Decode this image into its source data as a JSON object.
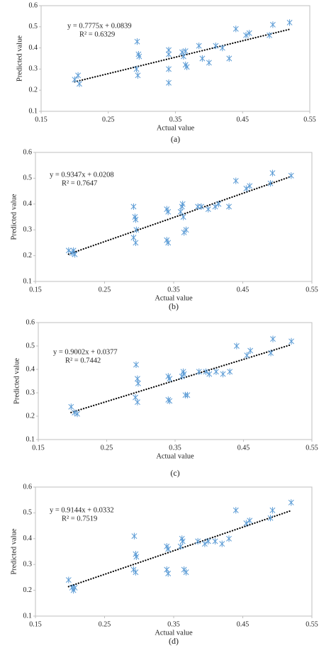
{
  "chart_data": [
    {
      "type": "scatter",
      "caption": "(a)",
      "xlabel": "Actual value",
      "ylabel": "Predicted value",
      "color": "#5b9bd5",
      "equation": "y = 0.7775x + 0.0839",
      "r2": "R² = 0.6329",
      "slope": 0.7775,
      "intercept": 0.0839,
      "xlim": [
        0.15,
        0.55
      ],
      "xticks": [
        0.15,
        0.25,
        0.35,
        0.45,
        0.55
      ],
      "ylim": [
        0.1,
        0.6
      ],
      "yticks": [
        0.1,
        0.2,
        0.3,
        0.4,
        0.5,
        0.6
      ],
      "x": [
        0.2,
        0.205,
        0.207,
        0.293,
        0.295,
        0.296,
        0.292,
        0.294,
        0.34,
        0.34,
        0.34,
        0.34,
        0.36,
        0.362,
        0.365,
        0.367,
        0.365,
        0.385,
        0.39,
        0.4,
        0.41,
        0.42,
        0.43,
        0.44,
        0.455,
        0.46,
        0.49,
        0.495,
        0.52
      ],
      "values": [
        0.25,
        0.27,
        0.23,
        0.43,
        0.37,
        0.36,
        0.3,
        0.27,
        0.39,
        0.37,
        0.3,
        0.235,
        0.38,
        0.36,
        0.32,
        0.31,
        0.385,
        0.41,
        0.35,
        0.33,
        0.41,
        0.4,
        0.35,
        0.49,
        0.46,
        0.47,
        0.46,
        0.51,
        0.52
      ]
    },
    {
      "type": "scatter",
      "caption": "(b)",
      "xlabel": "Actual value",
      "ylabel": "Predicted value",
      "color": "#5b9bd5",
      "equation": "y = 0.9347x + 0.0208",
      "r2": "R² = 0.7647",
      "slope": 0.9347,
      "intercept": 0.0208,
      "xlim": [
        0.15,
        0.55
      ],
      "xticks": [
        0.15,
        0.25,
        0.35,
        0.45,
        0.55
      ],
      "ylim": [
        0.1,
        0.6
      ],
      "yticks": [
        0.1,
        0.2,
        0.3,
        0.4,
        0.5,
        0.6
      ],
      "x": [
        0.198,
        0.203,
        0.205,
        0.207,
        0.292,
        0.294,
        0.295,
        0.292,
        0.295,
        0.296,
        0.34,
        0.342,
        0.34,
        0.342,
        0.36,
        0.362,
        0.363,
        0.364,
        0.365,
        0.368,
        0.385,
        0.39,
        0.4,
        0.41,
        0.415,
        0.43,
        0.44,
        0.455,
        0.46,
        0.49,
        0.493,
        0.52
      ],
      "values": [
        0.22,
        0.21,
        0.22,
        0.205,
        0.39,
        0.35,
        0.34,
        0.27,
        0.25,
        0.3,
        0.38,
        0.37,
        0.26,
        0.25,
        0.37,
        0.39,
        0.4,
        0.35,
        0.29,
        0.3,
        0.39,
        0.39,
        0.38,
        0.39,
        0.4,
        0.39,
        0.49,
        0.46,
        0.47,
        0.48,
        0.52,
        0.51
      ]
    },
    {
      "type": "scatter",
      "caption": "(c)",
      "xlabel": "Actual value",
      "ylabel": "Predicted value",
      "color": "#5b9bd5",
      "equation": "y = 0.9002x + 0.0377",
      "r2": "R² = 0.7442",
      "slope": 0.9002,
      "intercept": 0.0377,
      "xlim": [
        0.15,
        0.55
      ],
      "xticks": [
        0.15,
        0.25,
        0.35,
        0.45,
        0.55
      ],
      "ylim": [
        0.1,
        0.6
      ],
      "yticks": [
        0.1,
        0.2,
        0.3,
        0.4,
        0.5,
        0.6
      ],
      "x": [
        0.198,
        0.203,
        0.207,
        0.293,
        0.295,
        0.296,
        0.292,
        0.295,
        0.34,
        0.342,
        0.34,
        0.342,
        0.36,
        0.362,
        0.363,
        0.365,
        0.368,
        0.385,
        0.395,
        0.4,
        0.41,
        0.42,
        0.43,
        0.44,
        0.455,
        0.46,
        0.49,
        0.493,
        0.52
      ],
      "values": [
        0.24,
        0.215,
        0.21,
        0.42,
        0.36,
        0.34,
        0.28,
        0.26,
        0.37,
        0.36,
        0.27,
        0.265,
        0.37,
        0.39,
        0.38,
        0.29,
        0.29,
        0.39,
        0.39,
        0.38,
        0.39,
        0.38,
        0.39,
        0.5,
        0.46,
        0.48,
        0.47,
        0.53,
        0.52
      ]
    },
    {
      "type": "scatter",
      "caption": "(d)",
      "xlabel": "Actual value",
      "ylabel": "Predicted value",
      "color": "#5b9bd5",
      "equation": "y = 0.9144x + 0.0332",
      "r2": "R² = 0.7519",
      "slope": 0.9144,
      "intercept": 0.0332,
      "xlim": [
        0.15,
        0.55
      ],
      "xticks": [
        0.15,
        0.25,
        0.35,
        0.45,
        0.55
      ],
      "ylim": [
        0.1,
        0.6
      ],
      "yticks": [
        0.1,
        0.2,
        0.3,
        0.4,
        0.5,
        0.6
      ],
      "x": [
        0.198,
        0.203,
        0.205,
        0.207,
        0.293,
        0.295,
        0.296,
        0.292,
        0.295,
        0.34,
        0.342,
        0.34,
        0.342,
        0.36,
        0.362,
        0.363,
        0.365,
        0.368,
        0.385,
        0.395,
        0.4,
        0.41,
        0.42,
        0.43,
        0.44,
        0.455,
        0.46,
        0.49,
        0.493,
        0.52
      ],
      "values": [
        0.24,
        0.21,
        0.2,
        0.21,
        0.41,
        0.34,
        0.33,
        0.28,
        0.27,
        0.37,
        0.36,
        0.28,
        0.265,
        0.37,
        0.4,
        0.39,
        0.28,
        0.27,
        0.39,
        0.38,
        0.39,
        0.39,
        0.38,
        0.4,
        0.51,
        0.46,
        0.47,
        0.48,
        0.51,
        0.54
      ]
    }
  ]
}
